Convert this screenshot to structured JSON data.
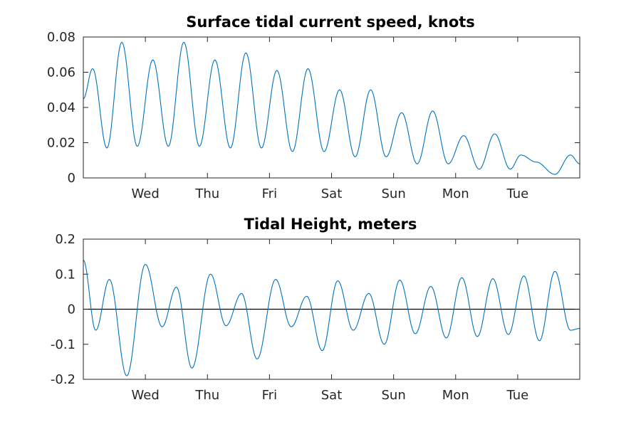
{
  "chart_data": [
    {
      "type": "line",
      "title": "Surface tidal current speed, knots",
      "xlabel": "",
      "ylabel": "",
      "xlim": [
        0,
        8
      ],
      "ylim": [
        0,
        0.08
      ],
      "x_ticks": [
        1,
        2,
        3,
        4,
        5,
        6,
        7
      ],
      "x_tick_labels": [
        "Wed",
        "Thu",
        "Fri",
        "Sat",
        "Sun",
        "Mon",
        "Tue"
      ],
      "y_ticks": [
        0,
        0.02,
        0.04,
        0.06,
        0.08
      ],
      "y_tick_labels": [
        "0",
        "0.02",
        "0.04",
        "0.06",
        "0.08"
      ],
      "grid": false,
      "color": "#0072bd",
      "series": [
        {
          "x": [
            0,
            0.15,
            0.38,
            0.62,
            0.87,
            1.12,
            1.37,
            1.62,
            1.87,
            2.12,
            2.37,
            2.62,
            2.87,
            3.12,
            3.37,
            3.62,
            3.88,
            4.13,
            4.38,
            4.63,
            4.88,
            5.13,
            5.38,
            5.63,
            5.88,
            6.13,
            6.38,
            6.63,
            6.88,
            7.05,
            7.3,
            7.6,
            7.85,
            8
          ],
          "values": [
            0.045,
            0.062,
            0.017,
            0.077,
            0.018,
            0.067,
            0.018,
            0.077,
            0.018,
            0.067,
            0.017,
            0.071,
            0.017,
            0.061,
            0.015,
            0.062,
            0.015,
            0.05,
            0.012,
            0.05,
            0.012,
            0.037,
            0.008,
            0.038,
            0.008,
            0.024,
            0.005,
            0.025,
            0.005,
            0.013,
            0.009,
            0.002,
            0.013,
            0.008
          ]
        }
      ]
    },
    {
      "type": "line",
      "title": "Tidal Height, meters",
      "xlabel": "",
      "ylabel": "",
      "xlim": [
        0,
        8
      ],
      "ylim": [
        -0.2,
        0.2
      ],
      "x_ticks": [
        1,
        2,
        3,
        4,
        5,
        6,
        7
      ],
      "x_tick_labels": [
        "Wed",
        "Thu",
        "Fri",
        "Sat",
        "Sun",
        "Mon",
        "Tue"
      ],
      "y_ticks": [
        -0.2,
        -0.1,
        0,
        0.1,
        0.2
      ],
      "y_tick_labels": [
        "-0.2",
        "-0.1",
        "0",
        "0.1",
        "0.2"
      ],
      "grid": false,
      "zero_line": true,
      "color": "#0072bd",
      "series": [
        {
          "x": [
            0,
            0.2,
            0.42,
            0.7,
            1.0,
            1.27,
            1.5,
            1.75,
            2.05,
            2.3,
            2.55,
            2.8,
            3.1,
            3.35,
            3.6,
            3.85,
            4.1,
            4.35,
            4.6,
            4.85,
            5.1,
            5.35,
            5.6,
            5.85,
            6.1,
            6.35,
            6.6,
            6.85,
            7.1,
            7.35,
            7.6,
            7.85,
            8
          ],
          "values": [
            0.14,
            -0.06,
            0.085,
            -0.19,
            0.128,
            -0.05,
            0.063,
            -0.168,
            0.1,
            -0.047,
            0.045,
            -0.142,
            0.085,
            -0.05,
            0.037,
            -0.118,
            0.081,
            -0.06,
            0.045,
            -0.1,
            0.083,
            -0.07,
            0.065,
            -0.082,
            0.09,
            -0.078,
            0.087,
            -0.072,
            0.095,
            -0.09,
            0.108,
            -0.06,
            -0.055
          ]
        }
      ]
    }
  ]
}
